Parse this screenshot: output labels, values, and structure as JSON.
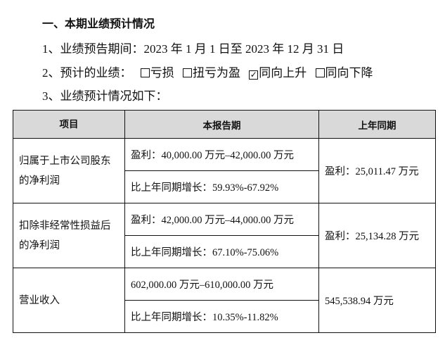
{
  "heading": "一、本期业绩预计情况",
  "period_line": "1、业绩预告期间：2023 年 1 月 1 日至 2023 年 12 月 31 日",
  "forecast": {
    "label": "2、预计的业绩：",
    "options": [
      {
        "label": "亏损",
        "checked": false
      },
      {
        "label": "扭亏为盈",
        "checked": false
      },
      {
        "label": "同向上升",
        "checked": true
      },
      {
        "label": "同向下降",
        "checked": false
      }
    ]
  },
  "table_intro": "3、业绩预计情况如下：",
  "table": {
    "headers": [
      "项目",
      "本报告期",
      "上年同期"
    ],
    "rows": [
      {
        "item": "归属于上市公司股东的净利润",
        "current": "盈利：40,000.00 万元–42,000.00 万元",
        "growth": "比上年同期增长：59.93%-67.92%",
        "prior": "盈利：25,011.47 万元"
      },
      {
        "item": "扣除非经常性损益后的净利润",
        "current": "盈利：42,000.00 万元–44,000.00 万元",
        "growth": "比上年同期增长：67.10%-75.06%",
        "prior": "盈利：25,134.28 万元"
      },
      {
        "item": "营业收入",
        "current": "602,000.00 万元–610,000.00 万元",
        "growth": "比上年同期增长：10.35%-11.82%",
        "prior": "545,538.94 万元"
      }
    ]
  }
}
